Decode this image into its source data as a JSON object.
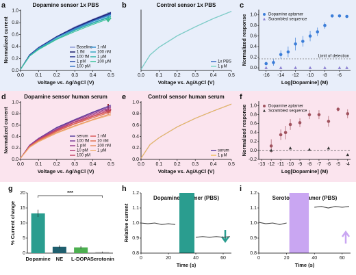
{
  "chart_data": [
    {
      "type": "line",
      "panel": "a",
      "title": "Dopamine sensor 1x PBS",
      "xlabel": "Voltage vs. Ag/AgCl (V)",
      "ylabel": "Normalized current",
      "x": [
        0,
        0.05,
        0.1,
        0.2,
        0.3,
        0.4,
        0.5
      ],
      "xlim": [
        0,
        0.5
      ],
      "ylim": [
        0,
        1.02
      ],
      "xticks": [
        {
          "value": 0,
          "label": "0.0"
        },
        0.1,
        0.2,
        0.3,
        0.4,
        0.5
      ],
      "yticks": [
        {
          "value": 0,
          "label": "0.0"
        },
        0.2,
        0.4,
        0.6,
        0.8,
        {
          "value": 1,
          "label": "1.0"
        }
      ],
      "legend": "lower right",
      "legend_columns": 2,
      "series": [
        {
          "name": "Baseline",
          "color": "#8f9bd6",
          "values": [
            0.02,
            0.26,
            0.39,
            0.57,
            0.73,
            0.86,
            0.98
          ]
        },
        {
          "name": "1 fM",
          "color": "#1b1b6b",
          "values": [
            0.02,
            0.26,
            0.38,
            0.57,
            0.72,
            0.85,
            0.97
          ]
        },
        {
          "name": "100 fM",
          "color": "#24308c",
          "values": [
            0.02,
            0.26,
            0.38,
            0.56,
            0.71,
            0.84,
            0.96
          ]
        },
        {
          "name": "1 pM",
          "color": "#2b4fa9",
          "values": [
            0.02,
            0.25,
            0.37,
            0.56,
            0.7,
            0.83,
            0.95
          ]
        },
        {
          "name": "100 pM",
          "color": "#3a78c8",
          "values": [
            0.02,
            0.25,
            0.37,
            0.55,
            0.7,
            0.83,
            0.94
          ]
        },
        {
          "name": "1 nM",
          "color": "#3a90cf",
          "values": [
            0.02,
            0.25,
            0.37,
            0.55,
            0.69,
            0.82,
            0.93
          ]
        },
        {
          "name": "100 nM",
          "color": "#35a6c2",
          "values": [
            0.02,
            0.24,
            0.36,
            0.53,
            0.68,
            0.8,
            0.91
          ]
        },
        {
          "name": "1 μM",
          "color": "#2fb3a6",
          "values": [
            0.02,
            0.24,
            0.36,
            0.53,
            0.67,
            0.79,
            0.9
          ]
        },
        {
          "name": "100 μM",
          "color": "#3cc49a",
          "values": [
            0.02,
            0.24,
            0.35,
            0.52,
            0.65,
            0.77,
            0.88
          ]
        }
      ]
    },
    {
      "type": "line",
      "panel": "b",
      "title": "Control sensor 1x PBS",
      "xlabel": "Voltage vs. Ag/AgCl (V)",
      "x": [
        0,
        0.05,
        0.1,
        0.2,
        0.3,
        0.4,
        0.5
      ],
      "xlim": [
        0,
        0.5
      ],
      "ylim": [
        0,
        1.02
      ],
      "xticks": [
        {
          "value": 0,
          "label": "0.0"
        },
        0.1,
        0.2,
        0.3,
        0.4,
        0.5
      ],
      "legend": "lower right",
      "legend_columns": 1,
      "series": [
        {
          "name": "1x PBS",
          "color": "#3b6fc4",
          "values": [
            0.02,
            0.26,
            0.39,
            0.58,
            0.73,
            0.87,
            0.99
          ]
        },
        {
          "name": "1 μM",
          "color": "#7fd6c4",
          "values": [
            0.02,
            0.26,
            0.39,
            0.58,
            0.73,
            0.87,
            0.99
          ]
        }
      ]
    },
    {
      "type": "scatter",
      "panel": "c",
      "xlabel": "Log[Dopamine] (M)",
      "ylabel": "Normalized response",
      "xlim": [
        -17,
        -4.5
      ],
      "ylim": [
        -0.05,
        1.1
      ],
      "xticks": [
        -16,
        -14,
        -12,
        -10,
        -8,
        -6
      ],
      "yticks": [
        {
          "value": 0,
          "label": "0.0"
        },
        0.2,
        0.4,
        0.6,
        0.8,
        {
          "value": 1,
          "label": "1.0"
        }
      ],
      "legend": "upper left",
      "legend_columns": 1,
      "lod": {
        "label": "Limit of detection",
        "value": 0.17
      },
      "series": [
        {
          "name": "Dopamine aptamer",
          "color": "#3b7dd8",
          "marker": "circle",
          "x": [
            -16,
            -15,
            -14,
            -13,
            -12,
            -11,
            -10,
            -9,
            -8,
            -7,
            -6,
            -5
          ],
          "values": [
            0.08,
            0.1,
            0.25,
            0.3,
            0.45,
            0.5,
            0.6,
            0.68,
            0.8,
            0.98,
            0.98,
            0.97
          ],
          "errors": [
            0.03,
            0.06,
            0.08,
            0.1,
            0.12,
            0.1,
            0.1,
            0.08,
            0.06,
            0.03,
            0.02,
            0.02
          ]
        },
        {
          "name": "Scrambled sequence",
          "color": "#8a7fd0",
          "marker": "triangle",
          "x": [
            -16,
            -14,
            -12,
            -10,
            -8,
            -6,
            -5
          ],
          "values": [
            0,
            0,
            0,
            0,
            0,
            0,
            0
          ]
        }
      ]
    },
    {
      "type": "line",
      "panel": "d",
      "title": "Dopamine sensor human serum",
      "xlabel": "Voltage vs. Ag/AgCl (V)",
      "ylabel": "Normalized current",
      "x": [
        0,
        0.05,
        0.1,
        0.2,
        0.3,
        0.4,
        0.5
      ],
      "xlim": [
        0,
        0.5
      ],
      "ylim": [
        0,
        1.02
      ],
      "xticks": [
        {
          "value": 0,
          "label": "0.0"
        },
        0.1,
        0.2,
        0.3,
        0.4,
        0.5
      ],
      "yticks": [
        {
          "value": 0,
          "label": "0.0"
        },
        0.2,
        0.4,
        0.6,
        0.8,
        {
          "value": 1,
          "label": "1.0"
        }
      ],
      "legend": "lower right",
      "legend_columns": 2,
      "series": [
        {
          "name": "serum",
          "color": "#5a3e9e",
          "values": [
            0.02,
            0.25,
            0.37,
            0.56,
            0.7,
            0.83,
            0.95
          ]
        },
        {
          "name": "100 fM",
          "color": "#7a3f9c",
          "values": [
            0.02,
            0.25,
            0.37,
            0.55,
            0.69,
            0.82,
            0.93
          ]
        },
        {
          "name": "1 pM",
          "color": "#983f8e",
          "values": [
            0.02,
            0.24,
            0.36,
            0.53,
            0.68,
            0.8,
            0.91
          ]
        },
        {
          "name": "10 pM",
          "color": "#b0407a",
          "values": [
            0.02,
            0.24,
            0.35,
            0.52,
            0.66,
            0.78,
            0.89
          ]
        },
        {
          "name": "100 pM",
          "color": "#c54868",
          "values": [
            0.02,
            0.23,
            0.34,
            0.51,
            0.65,
            0.76,
            0.87
          ]
        },
        {
          "name": "1 nM",
          "color": "#d85a5a",
          "values": [
            0.02,
            0.23,
            0.34,
            0.5,
            0.63,
            0.75,
            0.85
          ]
        },
        {
          "name": "10 nM",
          "color": "#e07050",
          "values": [
            0.02,
            0.22,
            0.33,
            0.49,
            0.62,
            0.73,
            0.83
          ]
        },
        {
          "name": "100 nM",
          "color": "#e89060",
          "values": [
            0.02,
            0.22,
            0.32,
            0.47,
            0.59,
            0.7,
            0.8
          ]
        },
        {
          "name": "1 μM",
          "color": "#f0b070",
          "values": [
            0.02,
            0.21,
            0.31,
            0.46,
            0.58,
            0.69,
            0.78
          ]
        }
      ]
    },
    {
      "type": "line",
      "panel": "e",
      "title": "Control sensor human serum",
      "xlabel": "Voltage vs. Ag/AgCl (V)",
      "x": [
        0,
        0.05,
        0.1,
        0.2,
        0.3,
        0.4,
        0.5
      ],
      "xlim": [
        0,
        0.5
      ],
      "ylim": [
        0,
        1.02
      ],
      "xticks": [
        {
          "value": 0,
          "label": "0.0"
        },
        0.1,
        0.2,
        0.3,
        0.4,
        0.5
      ],
      "yticks": [
        {
          "value": 0,
          "label": "0.0"
        },
        0.2,
        0.4,
        0.6,
        0.8,
        {
          "value": 1,
          "label": "1.0"
        }
      ],
      "legend": "lower right",
      "legend_columns": 1,
      "series": [
        {
          "name": "serum",
          "color": "#5a3e9e",
          "values": [
            0.02,
            0.26,
            0.38,
            0.57,
            0.72,
            0.85,
            0.97
          ]
        },
        {
          "name": "1 μM",
          "color": "#f0c060",
          "values": [
            0.02,
            0.26,
            0.38,
            0.57,
            0.72,
            0.85,
            0.97
          ]
        }
      ]
    },
    {
      "type": "scatter",
      "panel": "f",
      "xlabel": "Log[Dopamine] (M)",
      "ylabel": "Normalized response",
      "xlim": [
        -13.3,
        -3.7
      ],
      "ylim": [
        -0.2,
        1.1
      ],
      "xticks": [
        -13,
        -12,
        -11,
        -10,
        -9,
        -8,
        -7,
        -6,
        -5,
        -4
      ],
      "yticks": [
        -0.2,
        {
          "value": 0,
          "label": "0.0"
        },
        0.2,
        0.4,
        0.6,
        0.8,
        {
          "value": 1,
          "label": "1.0"
        }
      ],
      "legend": "upper left",
      "legend_columns": 1,
      "hline": 0,
      "series": [
        {
          "name": "Dopamine aptamer",
          "color": "#a0525e",
          "marker": "circle",
          "x": [
            -12,
            -11,
            -10.5,
            -10,
            -9,
            -8,
            -7,
            -6,
            -5,
            -4
          ],
          "values": [
            0.1,
            0.35,
            0.4,
            0.58,
            0.62,
            0.8,
            0.8,
            0.65,
            0.92,
            0.82
          ],
          "errors": [
            0.15,
            0.12,
            0.15,
            0.12,
            0.1,
            0.1,
            0.1,
            0.12,
            0.05,
            0.1
          ]
        },
        {
          "name": "Scrambled sequence",
          "color": "#333333",
          "marker": "triangle",
          "x": [
            -12,
            -10,
            -8,
            -6,
            -4
          ],
          "values": [
            0,
            0.05,
            0.02,
            0.05,
            -0.1
          ]
        }
      ]
    },
    {
      "type": "bar",
      "panel": "g",
      "ylabel": "% Current change",
      "ylim": [
        0,
        20
      ],
      "yticks": [
        0,
        5,
        10,
        15,
        20
      ],
      "categories": [
        "Dopamine",
        "NE",
        "L-DOPA",
        "Serotonin"
      ],
      "values": [
        13.2,
        2.1,
        1.9,
        0.3
      ],
      "errors": [
        1.2,
        0.5,
        0.4,
        0.2
      ],
      "colors": [
        "#2a9d8f",
        "#1f5f6e",
        "#4caf50",
        "#8a8a8a"
      ],
      "significance": "***"
    },
    {
      "type": "line",
      "panel": "h",
      "title": "Dopamine aptamer (PBS)",
      "xlabel": "Time (s)",
      "ylabel": "Relative current",
      "xlim": [
        0,
        66
      ],
      "ylim": [
        0.8,
        1.2
      ],
      "xticks": [
        0,
        20,
        40,
        60
      ],
      "yticks": [
        0.8,
        0.9,
        {
          "value": 1,
          "label": "1.0"
        },
        1.1,
        1.2
      ],
      "highlight": [
        28,
        39
      ],
      "highlight_color": "#2a9d8f",
      "color": "#444444",
      "x": [
        0,
        5,
        10,
        15,
        20,
        25,
        30,
        35,
        40,
        45,
        50,
        55,
        60,
        65
      ],
      "values": [
        1.0,
        0.995,
        1.0,
        0.99,
        0.995,
        0.99,
        null,
        null,
        0.905,
        0.91,
        0.905,
        0.91,
        0.905,
        0.91
      ]
    },
    {
      "type": "line",
      "panel": "i",
      "title": "Serotonin aptamer (PBS)",
      "xlabel": "Time (s)",
      "xlim": [
        0,
        66
      ],
      "ylim": [
        0.8,
        1.2
      ],
      "xticks": [
        0,
        20,
        40,
        60
      ],
      "yticks": [
        0.8,
        0.9,
        {
          "value": 1,
          "label": "1.0"
        },
        1.1,
        1.2
      ],
      "highlight": [
        22,
        36
      ],
      "highlight_color": "#c9a6f2",
      "color": "#444444",
      "x": [
        0,
        5,
        10,
        15,
        20,
        25,
        30,
        35,
        40,
        45,
        50,
        55,
        60,
        65
      ],
      "values": [
        1.005,
        0.995,
        1.0,
        0.99,
        1.0,
        null,
        null,
        null,
        1.105,
        1.11,
        1.1,
        1.11,
        1.105,
        1.11
      ]
    }
  ]
}
